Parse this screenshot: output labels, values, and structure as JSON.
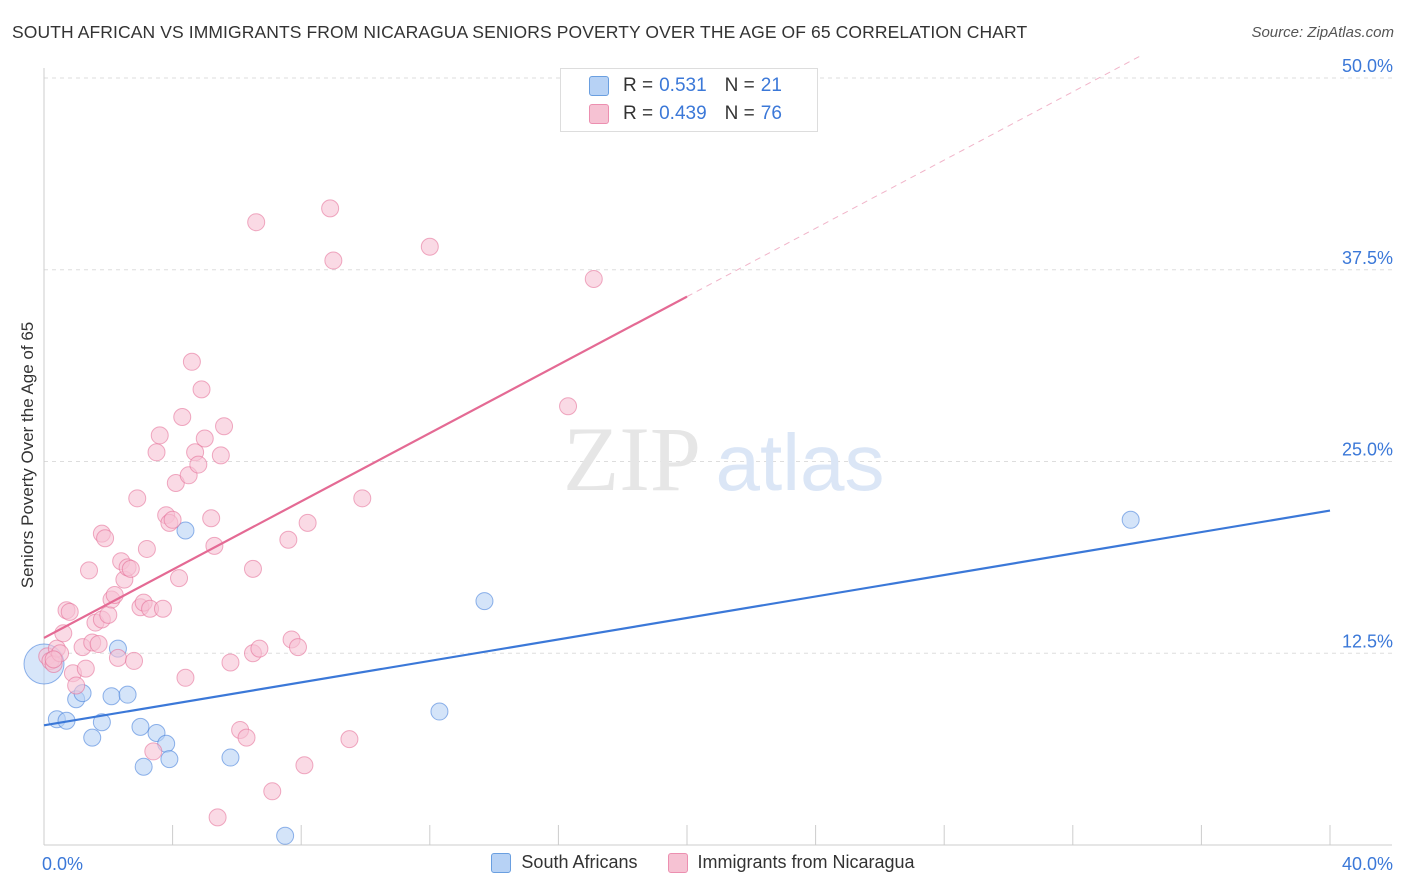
{
  "title": "SOUTH AFRICAN VS IMMIGRANTS FROM NICARAGUA SENIORS POVERTY OVER THE AGE OF 65 CORRELATION CHART",
  "source": "Source: ZipAtlas.com",
  "watermark": {
    "zip": "ZIP",
    "atlas": "atlas"
  },
  "legend": {
    "r_label": "R =",
    "n_label": "N =",
    "rows": [
      {
        "r": "0.531",
        "n": "21",
        "color": "#a9c8f0",
        "border": "#6a9fe0"
      },
      {
        "r": "0.439",
        "n": "76",
        "color": "#f7bcd0",
        "border": "#ec8fb0"
      }
    ]
  },
  "bottom_legend": [
    "South Africans",
    "Immigrants from Nicaragua"
  ],
  "chart_data": {
    "type": "scatter",
    "xlabel": "",
    "ylabel": "Seniors Poverty Over the Age of 65",
    "xlim": [
      0,
      40
    ],
    "ylim": [
      0,
      50
    ],
    "x_tick_labels": [
      "0.0%",
      "40.0%"
    ],
    "y_ticks": [
      12.5,
      25.0,
      37.5,
      50.0
    ],
    "y_tick_labels": [
      "12.5%",
      "25.0%",
      "37.5%",
      "50.0%"
    ],
    "grid": true,
    "series": [
      {
        "name": "South Africans",
        "color": "#3b78d8",
        "fill": "#b7d2f5",
        "trend": {
          "x0": 0,
          "y0": 7.8,
          "x1": 40,
          "y1": 21.8,
          "solid_to": 40
        },
        "points": [
          [
            0.0,
            11.8
          ],
          [
            0.4,
            8.2
          ],
          [
            0.7,
            8.1
          ],
          [
            1.0,
            9.5
          ],
          [
            1.2,
            9.9
          ],
          [
            1.5,
            7.0
          ],
          [
            1.8,
            8.0
          ],
          [
            2.1,
            9.7
          ],
          [
            2.3,
            12.8
          ],
          [
            2.6,
            9.8
          ],
          [
            3.0,
            7.7
          ],
          [
            3.1,
            5.1
          ],
          [
            3.5,
            7.3
          ],
          [
            3.8,
            6.6
          ],
          [
            3.9,
            5.6
          ],
          [
            4.4,
            20.5
          ],
          [
            5.8,
            5.7
          ],
          [
            7.5,
            0.6
          ],
          [
            12.3,
            8.7
          ],
          [
            13.7,
            15.9
          ],
          [
            33.8,
            21.2
          ]
        ]
      },
      {
        "name": "Immigrants from Nicaragua",
        "color": "#e46a94",
        "fill": "#f6c2d3",
        "trend": {
          "x0": 0,
          "y0": 13.5,
          "x1": 40,
          "y1": 58.0,
          "solid_to": 20
        },
        "points": [
          [
            0.1,
            12.3
          ],
          [
            0.2,
            12.0
          ],
          [
            0.3,
            11.8
          ],
          [
            0.4,
            12.8
          ],
          [
            0.5,
            12.5
          ],
          [
            0.6,
            13.8
          ],
          [
            0.7,
            15.3
          ],
          [
            0.8,
            15.2
          ],
          [
            0.9,
            11.2
          ],
          [
            1.0,
            10.4
          ],
          [
            1.2,
            12.9
          ],
          [
            1.3,
            11.5
          ],
          [
            1.4,
            17.9
          ],
          [
            1.5,
            13.2
          ],
          [
            1.6,
            14.5
          ],
          [
            1.7,
            13.1
          ],
          [
            1.8,
            14.7
          ],
          [
            1.8,
            20.3
          ],
          [
            1.9,
            20.0
          ],
          [
            2.0,
            15.0
          ],
          [
            2.1,
            16.0
          ],
          [
            2.2,
            16.3
          ],
          [
            2.3,
            12.2
          ],
          [
            2.4,
            18.5
          ],
          [
            2.5,
            17.3
          ],
          [
            2.6,
            18.1
          ],
          [
            2.7,
            18.0
          ],
          [
            2.8,
            12.0
          ],
          [
            2.9,
            22.6
          ],
          [
            3.0,
            15.5
          ],
          [
            3.1,
            15.8
          ],
          [
            3.2,
            19.3
          ],
          [
            3.3,
            15.4
          ],
          [
            3.4,
            6.1
          ],
          [
            3.5,
            25.6
          ],
          [
            3.6,
            26.7
          ],
          [
            3.7,
            15.4
          ],
          [
            3.8,
            21.5
          ],
          [
            3.9,
            21.0
          ],
          [
            4.0,
            21.2
          ],
          [
            4.1,
            23.6
          ],
          [
            4.2,
            17.4
          ],
          [
            4.3,
            27.9
          ],
          [
            4.4,
            10.9
          ],
          [
            4.5,
            24.1
          ],
          [
            4.6,
            31.5
          ],
          [
            4.7,
            25.6
          ],
          [
            4.8,
            24.8
          ],
          [
            4.9,
            29.7
          ],
          [
            5.0,
            26.5
          ],
          [
            5.2,
            21.3
          ],
          [
            5.3,
            19.5
          ],
          [
            5.4,
            1.8
          ],
          [
            5.5,
            25.4
          ],
          [
            5.6,
            27.3
          ],
          [
            5.8,
            11.9
          ],
          [
            6.1,
            7.5
          ],
          [
            6.3,
            7.0
          ],
          [
            6.5,
            12.5
          ],
          [
            6.5,
            18.0
          ],
          [
            6.6,
            40.6
          ],
          [
            6.7,
            12.8
          ],
          [
            7.1,
            3.5
          ],
          [
            7.6,
            19.9
          ],
          [
            7.7,
            13.4
          ],
          [
            7.9,
            12.9
          ],
          [
            8.1,
            5.2
          ],
          [
            8.2,
            21.0
          ],
          [
            8.9,
            41.5
          ],
          [
            9.0,
            38.1
          ],
          [
            9.5,
            6.9
          ],
          [
            9.9,
            22.6
          ],
          [
            12.0,
            39.0
          ],
          [
            16.3,
            28.6
          ],
          [
            17.1,
            36.9
          ],
          [
            0.3,
            12.1
          ]
        ]
      }
    ]
  }
}
